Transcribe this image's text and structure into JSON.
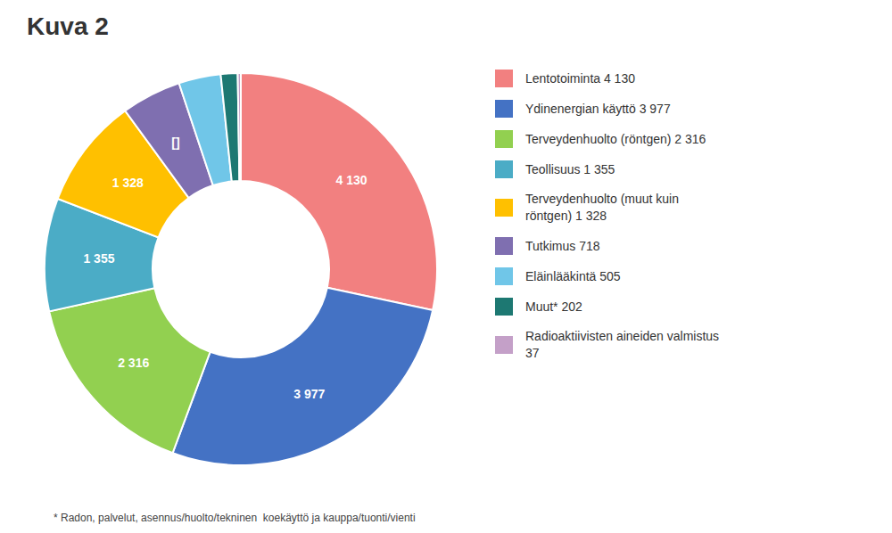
{
  "chart_data": {
    "type": "pie",
    "title": "Kuva 2",
    "categories": [
      "Lentotoiminta 4 130",
      "Ydinenergian käyttö 3 977",
      "Terveydenhuolto (röntgen) 2 316",
      "Teollisuus 1 355",
      "Terveydenhuolto (muut kuin\nröntgen) 1 328",
      "Tutkimus 718",
      "Eläinlääkintä 505",
      "Muut* 202",
      "Radioaktiivisten aineiden valmistus\n37"
    ],
    "values": [
      4130,
      3977,
      2316,
      1355,
      1328,
      718,
      505,
      202,
      37
    ],
    "value_labels": [
      "4 130",
      "3 977",
      "2 316",
      "1 355",
      "1 328",
      "[]",
      null,
      null,
      null
    ],
    "colors": [
      "#f28080",
      "#4472c4",
      "#92d050",
      "#4bacc6",
      "#ffc000",
      "#7f6fb0",
      "#70c6e8",
      "#1d7872",
      "#c4a0c8"
    ],
    "data_labels": true,
    "legend": "right",
    "annotations": [
      "* Radon, palvelut, asennus/huolto/tekninen  koekäyttö ja kauppa/tuonti/vienti"
    ]
  }
}
